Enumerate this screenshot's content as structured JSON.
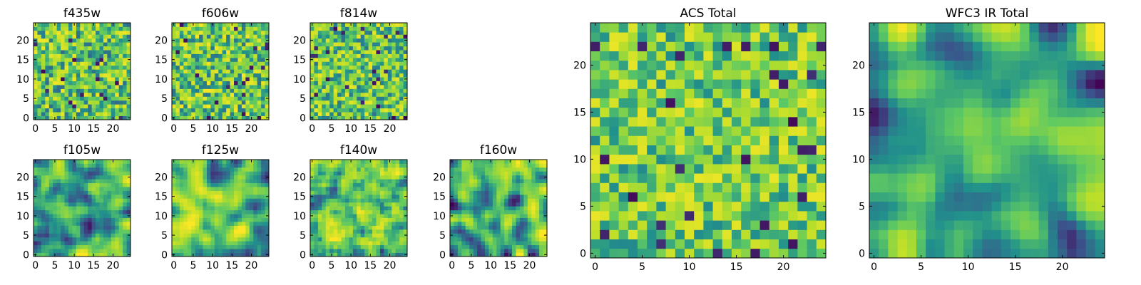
{
  "chart_data": [
    {
      "type": "heatmap",
      "title": "f435w",
      "grid_size": 25,
      "seed": 11,
      "smooth": 0,
      "base": 0.62,
      "spread": 0.38,
      "x_ticks": [
        "0",
        "5",
        "10",
        "15",
        "20"
      ],
      "y_ticks": [
        "0",
        "5",
        "10",
        "15",
        "20"
      ]
    },
    {
      "type": "heatmap",
      "title": "f606w",
      "grid_size": 25,
      "seed": 23,
      "smooth": 0,
      "base": 0.64,
      "spread": 0.38,
      "x_ticks": [
        "0",
        "5",
        "10",
        "15",
        "20"
      ],
      "y_ticks": [
        "0",
        "5",
        "10",
        "15",
        "20"
      ]
    },
    {
      "type": "heatmap",
      "title": "f814w",
      "grid_size": 25,
      "seed": 37,
      "smooth": 0,
      "base": 0.63,
      "spread": 0.36,
      "x_ticks": [
        "0",
        "5",
        "10",
        "15",
        "20"
      ],
      "y_ticks": [
        "0",
        "5",
        "10",
        "15",
        "20"
      ]
    },
    {
      "type": "heatmap",
      "title": "f105w",
      "grid_size": 25,
      "seed": 41,
      "smooth": 2,
      "base": 0.55,
      "spread": 0.55,
      "x_ticks": [
        "0",
        "5",
        "10",
        "15",
        "20"
      ],
      "y_ticks": [
        "0",
        "5",
        "10",
        "15",
        "20"
      ]
    },
    {
      "type": "heatmap",
      "title": "f125w",
      "grid_size": 25,
      "seed": 53,
      "smooth": 2,
      "base": 0.6,
      "spread": 0.55,
      "x_ticks": [
        "0",
        "5",
        "10",
        "15",
        "20"
      ],
      "y_ticks": [
        "0",
        "5",
        "10",
        "15",
        "20"
      ]
    },
    {
      "type": "heatmap",
      "title": "f140w",
      "grid_size": 25,
      "seed": 67,
      "smooth": 1,
      "base": 0.6,
      "spread": 0.5,
      "x_ticks": [
        "0",
        "5",
        "10",
        "15",
        "20"
      ],
      "y_ticks": [
        "0",
        "5",
        "10",
        "15",
        "20"
      ]
    },
    {
      "type": "heatmap",
      "title": "f160w",
      "grid_size": 25,
      "seed": 79,
      "smooth": 2,
      "base": 0.52,
      "spread": 0.6,
      "x_ticks": [
        "0",
        "5",
        "10",
        "15",
        "20"
      ],
      "y_ticks": [
        "0",
        "5",
        "10",
        "15",
        "20"
      ]
    },
    {
      "type": "heatmap",
      "title": "ACS Total",
      "grid_size": 25,
      "seed": 97,
      "smooth": 0,
      "base": 0.66,
      "spread": 0.32,
      "x_ticks": [
        "0",
        "5",
        "10",
        "15",
        "20"
      ],
      "y_ticks": [
        "0",
        "5",
        "10",
        "15",
        "20"
      ]
    },
    {
      "type": "heatmap",
      "title": "WFC3 IR Total",
      "grid_size": 25,
      "seed": 113,
      "smooth": 3,
      "base": 0.55,
      "spread": 0.6,
      "x_ticks": [
        "0",
        "5",
        "10",
        "15",
        "20"
      ],
      "y_ticks": [
        "0",
        "5",
        "10",
        "15",
        "20"
      ]
    }
  ],
  "colormap": [
    "#440154",
    "#3b528b",
    "#21918c",
    "#5ec962",
    "#b5de2b",
    "#fde725"
  ]
}
